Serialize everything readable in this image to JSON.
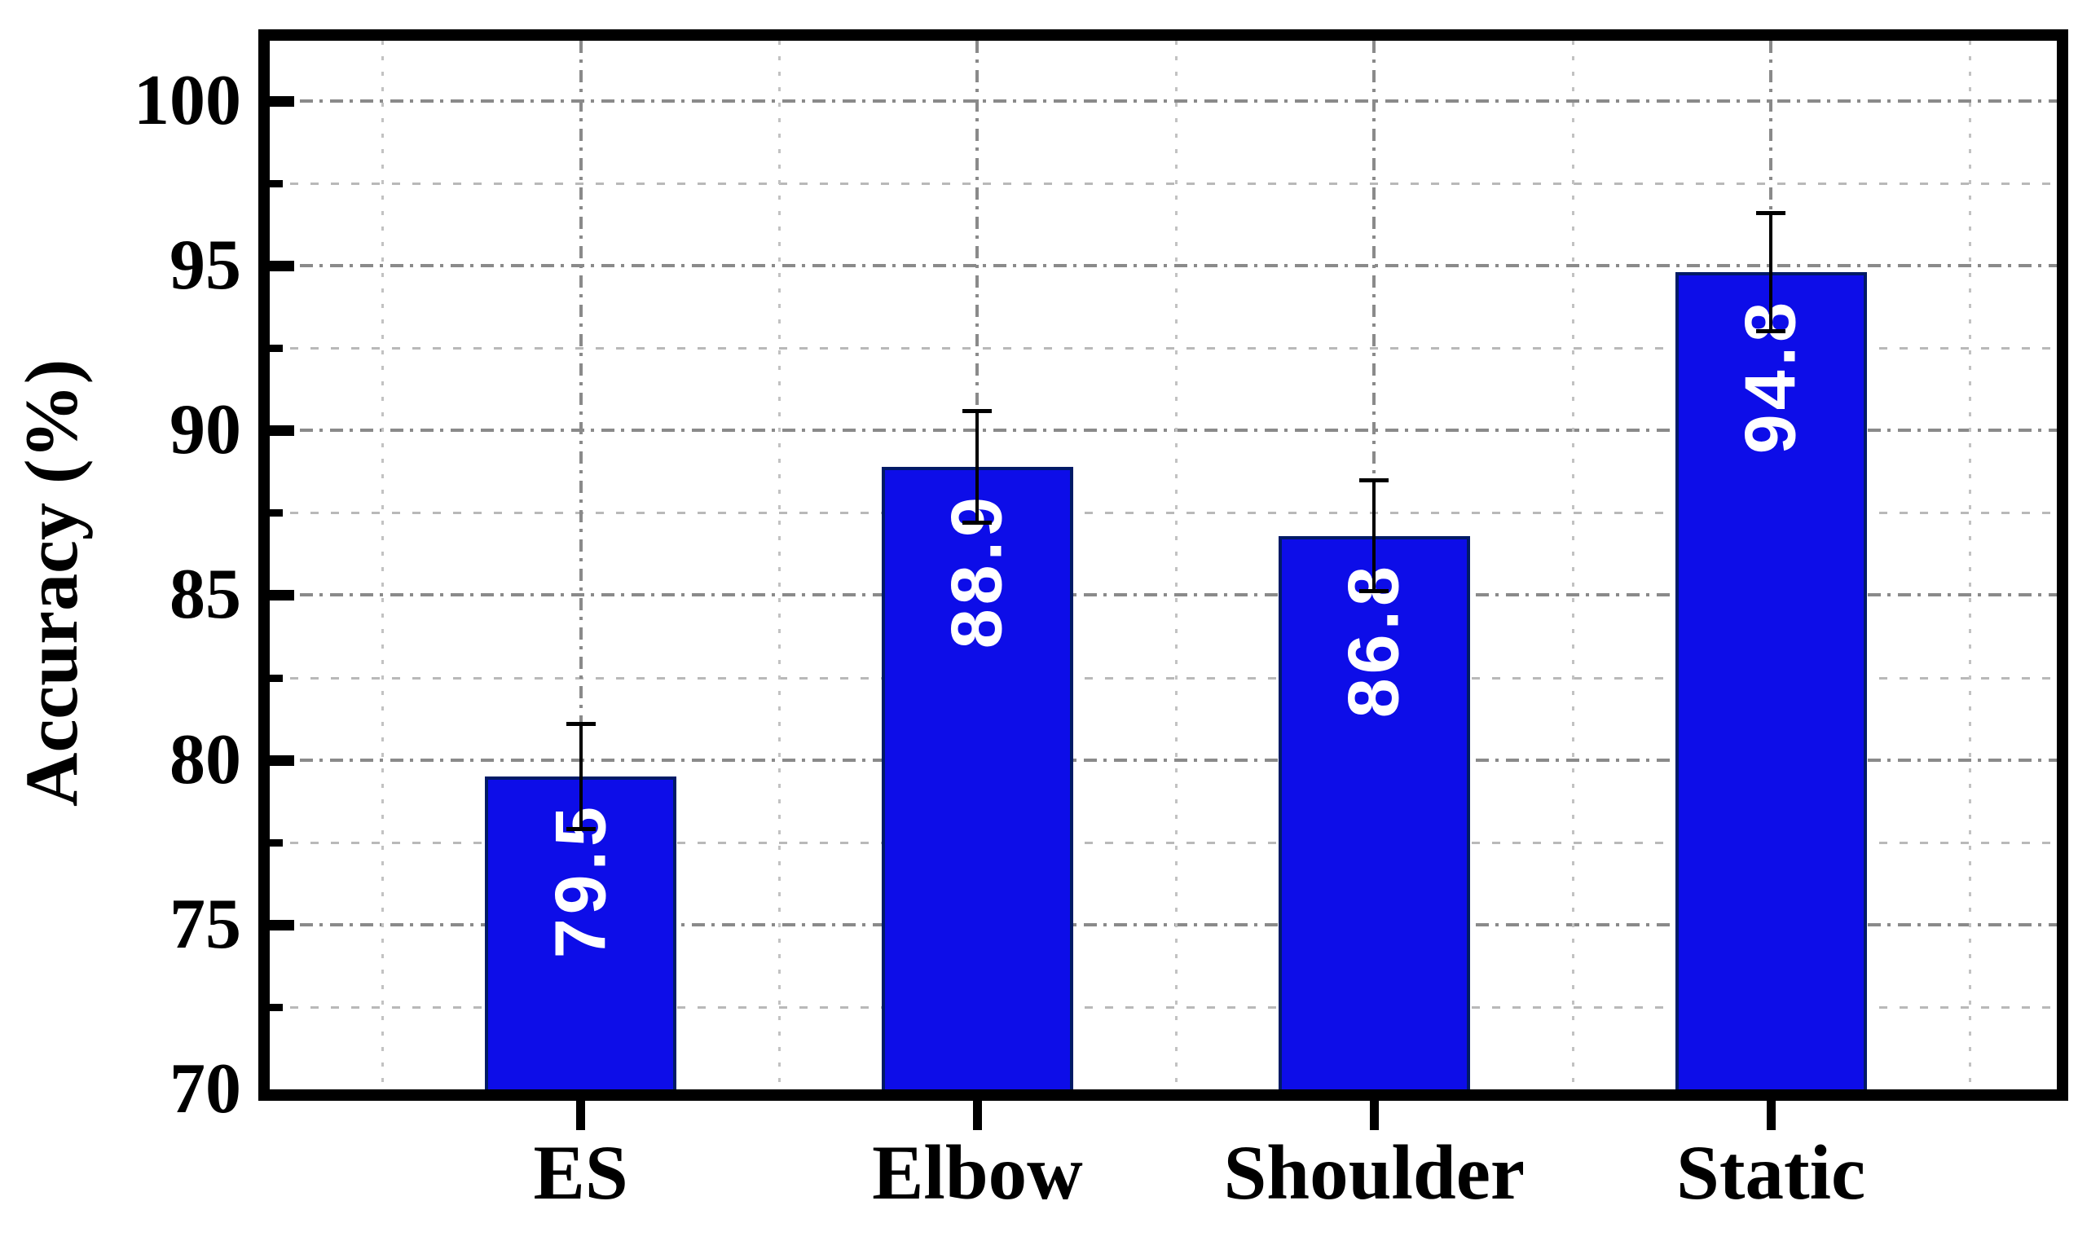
{
  "chart_data": {
    "type": "bar",
    "title": "",
    "categories": [
      "ES",
      "Elbow",
      "Shoulder",
      "Static"
    ],
    "values": [
      79.5,
      88.9,
      86.8,
      94.8
    ],
    "errors_plus": [
      1.6,
      1.7,
      1.7,
      1.8
    ],
    "errors_minus": [
      1.6,
      1.7,
      1.7,
      1.8
    ],
    "bar_value_labels": [
      "79.5",
      "88.9",
      "86.8",
      "94.8"
    ],
    "xlabel": "",
    "ylabel": "Accuracy (%)",
    "ylim": [
      70,
      101.83
    ],
    "yticks_major": [
      70,
      75,
      80,
      85,
      90,
      95,
      100
    ],
    "ytick_labels": [
      "70",
      "75",
      "80",
      "85",
      "90",
      "95",
      "100"
    ],
    "yticks_minor": [
      72.5,
      77.5,
      82.5,
      87.5,
      92.5,
      97.5
    ],
    "grid": {
      "horizontal": "dashed gray at every 2.5 units (major and minor)",
      "vertical": "dashed gray at category centers and midpoints",
      "legend_position": "none"
    },
    "error_bars": "symmetric, capped, upper and lower, drawn over bars",
    "bar_label_orientation": "rotated 90deg, reads bottom-to-top, anchored near bar top",
    "colors": {
      "bar_fill": "#0d0de8",
      "bar_edge": "#001a66",
      "error_bar": "#000000",
      "axis": "#000000",
      "grid_major": "#8a8a8a",
      "grid_minor": "#bdbdbd",
      "bar_label_text": "#ffffff",
      "background": "#ffffff"
    }
  }
}
